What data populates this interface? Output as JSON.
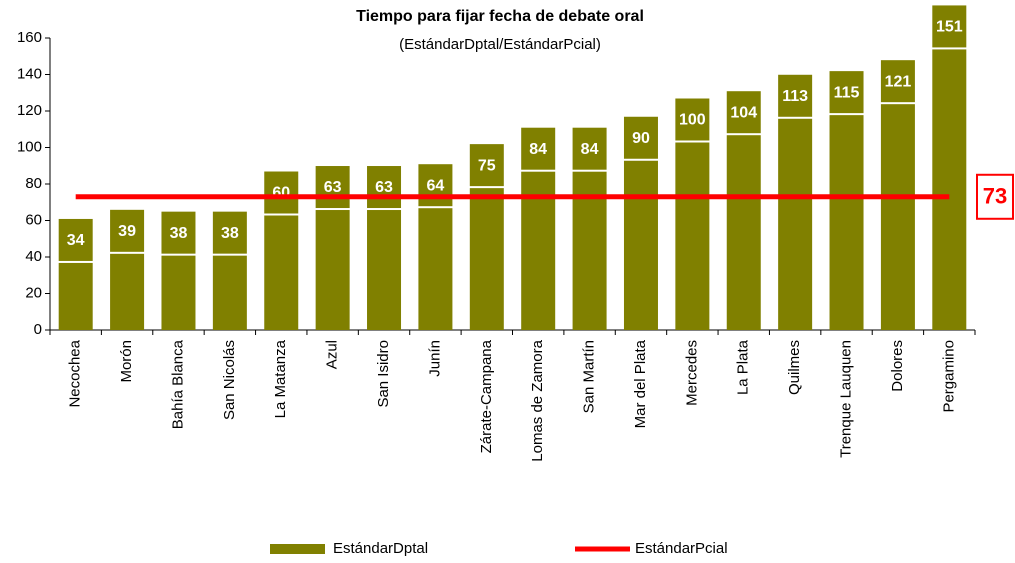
{
  "chart_data": {
    "type": "bar",
    "title": "Tiempo para fijar fecha de debate oral",
    "subtitle": "(EstándarDptal/EstándarPcial)",
    "categories": [
      "Necochea",
      "Morón",
      "Bahía Blanca",
      "San Nicolás",
      "La Matanza",
      "Azul",
      "San Isidro",
      "Junín",
      "Zárate-Campana",
      "Lomas de Zamora",
      "San Martín",
      "Mar del Plata",
      "Mercedes",
      "La Plata",
      "Quilmes",
      "Trenque Lauquen",
      "Dolores",
      "Pergamino"
    ],
    "series": [
      {
        "name": "EstándarDptal",
        "type": "bar",
        "color": "#808000",
        "values": [
          34,
          39,
          38,
          38,
          60,
          63,
          63,
          64,
          75,
          84,
          84,
          90,
          100,
          104,
          113,
          115,
          121,
          151
        ]
      },
      {
        "name": "EstándarPcial",
        "type": "line",
        "color": "#ff0000",
        "values": [
          73,
          73,
          73,
          73,
          73,
          73,
          73,
          73,
          73,
          73,
          73,
          73,
          73,
          73,
          73,
          73,
          73,
          73
        ]
      }
    ],
    "ylim": [
      0,
      160
    ],
    "yticks": [
      0,
      20,
      40,
      60,
      80,
      100,
      120,
      140,
      160
    ]
  }
}
